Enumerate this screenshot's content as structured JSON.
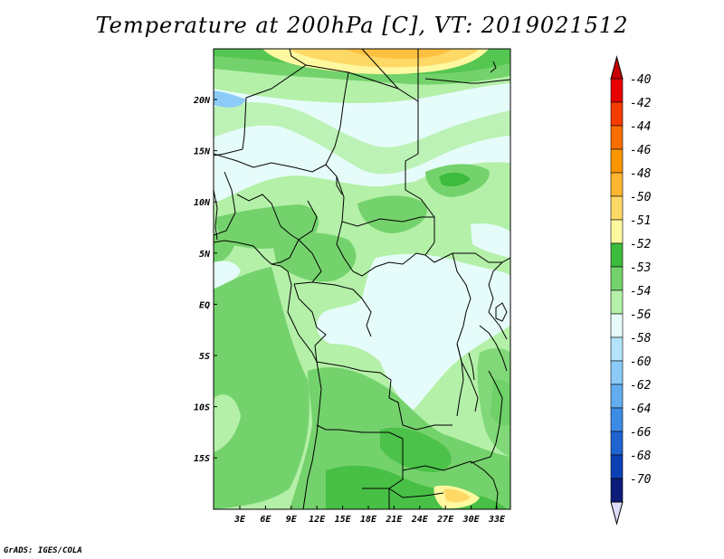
{
  "title": "Temperature at 200hPa [C], VT: 2019021512",
  "credit": "GrADS: IGES/COLA",
  "lat_ticks": [
    "20N",
    "15N",
    "10N",
    "5N",
    "EQ",
    "5S",
    "10S",
    "15S"
  ],
  "lon_ticks": [
    "3E",
    "6E",
    "9E",
    "12E",
    "15E",
    "18E",
    "21E",
    "24E",
    "27E",
    "30E",
    "33E"
  ],
  "colorbar": {
    "labels": [
      "-40",
      "-42",
      "-44",
      "-46",
      "-48",
      "-50",
      "-51",
      "-52",
      "-53",
      "-54",
      "-56",
      "-58",
      "-60",
      "-62",
      "-64",
      "-66",
      "-68",
      "-70"
    ],
    "colors": [
      "#e60000",
      "#f53c00",
      "#fa6e00",
      "#fc9600",
      "#feb532",
      "#fed966",
      "#fef8a0",
      "#3cbb3c",
      "#74d26c",
      "#b4f0a8",
      "#e6fcfa",
      "#b4e4fa",
      "#8ccbf8",
      "#64acf0",
      "#3c8ce6",
      "#2064d2",
      "#0a40b4",
      "#0c1c78"
    ],
    "top_color": "#c80000",
    "bottom_color": "#dcdcf8"
  },
  "palette": {
    "warm_yellow": "#fed966",
    "orange": "#feb532",
    "dark_green": "#3cbb3c",
    "mid_green": "#74d26c",
    "light_green": "#b4f0a8",
    "pale_cyan": "#e6fcfa",
    "light_blue": "#8ccbf8"
  }
}
